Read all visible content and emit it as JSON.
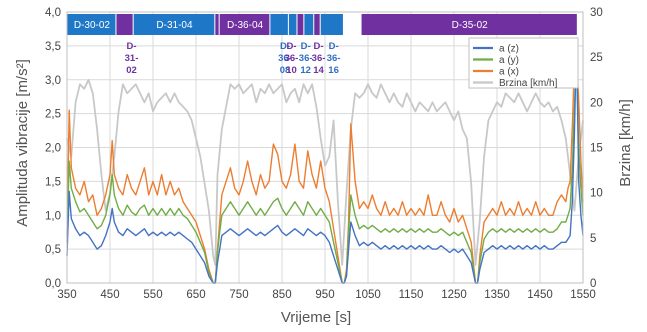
{
  "chart_data": {
    "type": "line",
    "xlabel": "Vrijeme [s]",
    "ylabel_left": "Amplituda vibracije [m/s²]",
    "ylabel_right": "Brzina [km/h]",
    "xlim": [
      350,
      1550
    ],
    "ylim_left": [
      0,
      4
    ],
    "ylim_right": [
      0,
      30
    ],
    "x_ticks": [
      "350",
      "450",
      "550",
      "650",
      "750",
      "850",
      "950",
      "1050",
      "1150",
      "1250",
      "1350",
      "1450",
      "1550"
    ],
    "y_ticks_left": [
      "0,0",
      "0,5",
      "1,0",
      "1,5",
      "2,0",
      "2,5",
      "3,0",
      "3,5",
      "4,0"
    ],
    "y_ticks_right": [
      "0",
      "5",
      "10",
      "15",
      "20",
      "25",
      "30"
    ],
    "grid": true,
    "legend_position": "top-right",
    "colors": {
      "az": "#4472c4",
      "ay": "#70ad47",
      "ax": "#ed7d31",
      "speed": "#c8c8c8",
      "segment_blue": "#1f77c8",
      "segment_purple": "#7030a0",
      "label_blue": "#2e6fc4",
      "label_purple": "#7030a0"
    },
    "series": [
      {
        "key": "az",
        "name": "a (z)",
        "axis": "left",
        "x": [
          350,
          355,
          360,
          370,
          380,
          390,
          400,
          410,
          420,
          430,
          440,
          450,
          455,
          460,
          470,
          480,
          490,
          500,
          510,
          520,
          530,
          540,
          550,
          560,
          570,
          580,
          590,
          600,
          610,
          620,
          630,
          640,
          650,
          660,
          670,
          680,
          690,
          695,
          700,
          705,
          710,
          720,
          730,
          740,
          750,
          760,
          770,
          780,
          790,
          800,
          810,
          820,
          830,
          840,
          850,
          860,
          870,
          880,
          890,
          900,
          910,
          920,
          930,
          940,
          950,
          960,
          970,
          980,
          990,
          995,
          1000,
          1005,
          1010,
          1020,
          1030,
          1040,
          1050,
          1060,
          1070,
          1080,
          1090,
          1100,
          1110,
          1120,
          1130,
          1140,
          1150,
          1160,
          1170,
          1180,
          1190,
          1200,
          1210,
          1220,
          1230,
          1240,
          1250,
          1260,
          1270,
          1280,
          1290,
          1300,
          1305,
          1310,
          1320,
          1330,
          1340,
          1350,
          1360,
          1370,
          1380,
          1390,
          1400,
          1410,
          1420,
          1430,
          1440,
          1450,
          1460,
          1470,
          1480,
          1490,
          1500,
          1510,
          1515,
          1520,
          1525,
          1530,
          1535,
          1540,
          1545,
          1550
        ],
        "y": [
          0.4,
          1.35,
          0.95,
          0.8,
          0.7,
          0.75,
          0.7,
          0.6,
          0.5,
          0.55,
          0.7,
          0.9,
          1.1,
          0.9,
          0.75,
          0.7,
          0.8,
          0.75,
          0.7,
          0.75,
          0.8,
          0.7,
          0.75,
          0.7,
          0.75,
          0.7,
          0.75,
          0.7,
          0.75,
          0.7,
          0.65,
          0.6,
          0.5,
          0.4,
          0.3,
          0.1,
          0.0,
          0.0,
          0.3,
          0.5,
          0.7,
          0.75,
          0.8,
          0.75,
          0.7,
          0.75,
          0.8,
          0.75,
          0.7,
          0.75,
          0.7,
          0.75,
          0.8,
          0.85,
          0.75,
          0.7,
          0.75,
          0.8,
          0.75,
          0.7,
          0.8,
          0.75,
          0.7,
          0.75,
          0.7,
          0.6,
          0.4,
          0.2,
          0.0,
          0.0,
          0.1,
          0.5,
          0.9,
          0.7,
          0.55,
          0.6,
          0.55,
          0.6,
          0.55,
          0.5,
          0.55,
          0.5,
          0.55,
          0.5,
          0.55,
          0.5,
          0.55,
          0.5,
          0.55,
          0.5,
          0.55,
          0.5,
          0.5,
          0.55,
          0.5,
          0.45,
          0.5,
          0.45,
          0.5,
          0.4,
          0.3,
          0.0,
          0.0,
          0.2,
          0.45,
          0.5,
          0.55,
          0.5,
          0.55,
          0.5,
          0.55,
          0.5,
          0.55,
          0.5,
          0.55,
          0.5,
          0.55,
          0.5,
          0.55,
          0.5,
          0.5,
          0.55,
          0.6,
          0.6,
          0.65,
          0.7,
          1.2,
          2.2,
          3.6,
          1.5,
          1.0,
          0.7
        ]
      },
      {
        "key": "ay",
        "name": "a (y)",
        "axis": "left",
        "x": [
          350,
          355,
          360,
          370,
          380,
          390,
          400,
          410,
          420,
          430,
          440,
          450,
          455,
          460,
          470,
          480,
          490,
          500,
          510,
          520,
          530,
          540,
          550,
          560,
          570,
          580,
          590,
          600,
          610,
          620,
          630,
          640,
          650,
          660,
          670,
          680,
          690,
          695,
          700,
          705,
          710,
          720,
          730,
          740,
          750,
          760,
          770,
          780,
          790,
          800,
          810,
          820,
          830,
          840,
          850,
          860,
          870,
          880,
          890,
          900,
          910,
          920,
          930,
          940,
          950,
          960,
          970,
          980,
          990,
          995,
          1000,
          1005,
          1010,
          1020,
          1030,
          1040,
          1050,
          1060,
          1070,
          1080,
          1090,
          1100,
          1110,
          1120,
          1130,
          1140,
          1150,
          1160,
          1170,
          1180,
          1190,
          1200,
          1210,
          1220,
          1230,
          1240,
          1250,
          1260,
          1270,
          1280,
          1290,
          1300,
          1305,
          1310,
          1320,
          1330,
          1340,
          1350,
          1360,
          1370,
          1380,
          1390,
          1400,
          1410,
          1420,
          1430,
          1440,
          1450,
          1460,
          1470,
          1480,
          1490,
          1500,
          1510,
          1515,
          1520,
          1525,
          1530,
          1535,
          1540,
          1545,
          1550
        ],
        "y": [
          0.6,
          1.8,
          1.4,
          1.2,
          1.05,
          1.1,
          1.0,
          0.9,
          0.8,
          0.85,
          1.0,
          1.3,
          1.6,
          1.3,
          1.1,
          1.0,
          1.15,
          1.05,
          1.0,
          1.1,
          1.15,
          1.0,
          1.1,
          1.0,
          1.1,
          1.0,
          1.1,
          1.0,
          1.1,
          1.0,
          0.95,
          0.85,
          0.75,
          0.6,
          0.45,
          0.15,
          0.0,
          0.0,
          0.45,
          0.75,
          1.0,
          1.1,
          1.2,
          1.1,
          1.0,
          1.1,
          1.2,
          1.1,
          1.0,
          1.1,
          1.0,
          1.1,
          1.2,
          1.25,
          1.1,
          1.0,
          1.1,
          1.2,
          1.1,
          1.0,
          1.2,
          1.1,
          1.0,
          1.1,
          1.0,
          0.9,
          0.6,
          0.3,
          0.0,
          0.0,
          0.15,
          0.75,
          1.3,
          1.0,
          0.8,
          0.85,
          0.8,
          0.85,
          0.8,
          0.75,
          0.8,
          0.75,
          0.8,
          0.75,
          0.8,
          0.75,
          0.8,
          0.75,
          0.8,
          0.75,
          0.8,
          0.75,
          0.75,
          0.8,
          0.75,
          0.7,
          0.75,
          0.7,
          0.75,
          0.6,
          0.45,
          0.0,
          0.0,
          0.3,
          0.65,
          0.75,
          0.8,
          0.75,
          0.8,
          0.75,
          0.8,
          0.75,
          0.8,
          0.75,
          0.8,
          0.75,
          0.8,
          0.75,
          0.8,
          0.75,
          0.75,
          0.8,
          0.9,
          0.9,
          1.0,
          1.1,
          1.7,
          2.6,
          3.3,
          2.0,
          1.4,
          1.0
        ]
      },
      {
        "key": "ax",
        "name": "a (x)",
        "axis": "left",
        "x": [
          350,
          355,
          360,
          370,
          380,
          390,
          400,
          410,
          420,
          430,
          440,
          450,
          455,
          460,
          470,
          480,
          490,
          500,
          510,
          520,
          530,
          540,
          550,
          560,
          570,
          580,
          590,
          600,
          610,
          620,
          630,
          640,
          650,
          660,
          670,
          680,
          690,
          695,
          700,
          705,
          710,
          720,
          730,
          740,
          750,
          760,
          770,
          780,
          790,
          800,
          810,
          820,
          830,
          840,
          850,
          860,
          870,
          880,
          890,
          900,
          910,
          920,
          930,
          940,
          950,
          960,
          970,
          980,
          990,
          995,
          1000,
          1005,
          1010,
          1020,
          1030,
          1040,
          1050,
          1060,
          1070,
          1080,
          1090,
          1100,
          1110,
          1120,
          1130,
          1140,
          1150,
          1160,
          1170,
          1180,
          1190,
          1200,
          1210,
          1220,
          1230,
          1240,
          1250,
          1260,
          1270,
          1280,
          1290,
          1300,
          1305,
          1310,
          1320,
          1330,
          1340,
          1350,
          1360,
          1370,
          1380,
          1390,
          1400,
          1410,
          1420,
          1430,
          1440,
          1450,
          1460,
          1470,
          1480,
          1490,
          1500,
          1510,
          1515,
          1520,
          1525,
          1530,
          1535,
          1540,
          1545,
          1550
        ],
        "y": [
          0.7,
          2.55,
          1.7,
          1.4,
          1.3,
          1.5,
          1.2,
          1.3,
          1.0,
          1.1,
          1.3,
          1.6,
          2.1,
          1.6,
          1.4,
          1.3,
          1.6,
          1.4,
          1.3,
          1.5,
          1.7,
          1.3,
          1.5,
          1.3,
          1.6,
          1.3,
          1.5,
          1.3,
          1.4,
          1.2,
          1.1,
          1.0,
          0.9,
          0.7,
          0.5,
          0.2,
          0.0,
          0.0,
          0.5,
          0.9,
          1.3,
          1.5,
          1.7,
          1.4,
          1.3,
          1.5,
          1.8,
          1.5,
          1.3,
          1.6,
          1.4,
          1.5,
          2.05,
          1.9,
          1.5,
          1.4,
          1.6,
          2.05,
          1.5,
          1.4,
          1.95,
          1.6,
          1.4,
          1.8,
          1.4,
          1.2,
          0.8,
          0.4,
          0.0,
          0.0,
          0.2,
          0.9,
          2.35,
          1.5,
          1.1,
          1.2,
          1.1,
          1.3,
          1.1,
          1.0,
          1.2,
          1.0,
          1.1,
          1.0,
          1.2,
          1.0,
          1.1,
          1.0,
          1.1,
          1.0,
          1.3,
          1.0,
          1.0,
          1.2,
          1.0,
          0.9,
          1.1,
          0.9,
          1.0,
          0.8,
          0.6,
          0.0,
          0.0,
          0.4,
          0.9,
          1.0,
          1.1,
          1.0,
          1.2,
          1.0,
          1.1,
          1.0,
          1.2,
          1.0,
          1.1,
          1.0,
          1.2,
          1.0,
          1.1,
          1.0,
          1.0,
          1.2,
          1.3,
          1.2,
          1.4,
          1.5,
          2.3,
          3.2,
          3.3,
          2.7,
          1.8,
          1.2
        ]
      },
      {
        "key": "speed",
        "name": "Brzina [km/h]",
        "axis": "right",
        "x": [
          350,
          360,
          370,
          380,
          390,
          400,
          410,
          420,
          430,
          440,
          450,
          460,
          470,
          480,
          490,
          500,
          510,
          520,
          530,
          540,
          550,
          560,
          570,
          580,
          590,
          600,
          610,
          620,
          630,
          640,
          650,
          660,
          670,
          680,
          690,
          695,
          700,
          710,
          720,
          730,
          740,
          750,
          760,
          770,
          780,
          790,
          800,
          810,
          820,
          830,
          840,
          850,
          860,
          870,
          880,
          890,
          900,
          910,
          920,
          930,
          940,
          950,
          960,
          970,
          980,
          990,
          1000,
          1010,
          1020,
          1030,
          1040,
          1050,
          1060,
          1070,
          1080,
          1090,
          1100,
          1110,
          1120,
          1130,
          1140,
          1150,
          1160,
          1170,
          1180,
          1190,
          1200,
          1210,
          1220,
          1230,
          1240,
          1250,
          1260,
          1270,
          1280,
          1290,
          1300,
          1310,
          1320,
          1330,
          1340,
          1350,
          1360,
          1370,
          1380,
          1390,
          1400,
          1410,
          1420,
          1430,
          1440,
          1450,
          1460,
          1470,
          1480,
          1490,
          1500,
          1510,
          1520,
          1530,
          1540,
          1550
        ],
        "y": [
          16,
          14,
          20,
          22,
          21.5,
          22.5,
          21,
          17,
          12,
          8,
          10,
          14,
          19,
          22,
          21,
          21.5,
          22,
          21,
          20,
          21,
          19,
          20,
          20.5,
          21,
          20,
          21,
          20,
          19.5,
          19,
          18,
          16,
          14,
          11,
          8,
          3,
          2,
          12,
          17,
          19.5,
          22,
          21.5,
          22,
          21,
          21.5,
          22,
          20,
          21.5,
          21,
          22,
          21,
          21.5,
          22,
          20,
          21,
          21.5,
          20,
          22,
          21,
          22,
          19.5,
          16,
          13,
          14,
          18,
          9,
          2,
          10,
          17,
          21,
          20.5,
          21,
          22,
          21,
          20.5,
          22,
          21,
          20,
          21,
          20,
          19.5,
          21,
          20,
          19,
          20,
          19.5,
          19,
          20,
          19,
          19.5,
          20,
          19,
          18,
          19,
          17,
          16,
          11,
          2,
          7,
          14,
          18,
          19,
          20,
          19.5,
          21,
          20.5,
          20,
          21,
          20,
          19,
          20,
          21,
          20,
          19.5,
          20,
          19,
          19.5,
          18,
          16,
          12,
          8,
          14,
          18
        ]
      }
    ],
    "segments_top": [
      {
        "label": "D-30-02",
        "x_start": 351,
        "x_end": 465,
        "color": "blue"
      },
      {
        "label": "",
        "x_start": 465,
        "x_end": 505,
        "color": "purple"
      },
      {
        "label": "D-31-04",
        "x_start": 505,
        "x_end": 695,
        "color": "blue"
      },
      {
        "label": "",
        "x_start": 695,
        "x_end": 705,
        "color": "purple"
      },
      {
        "label": "D-36-04",
        "x_start": 705,
        "x_end": 823,
        "color": "purple"
      },
      {
        "label": "",
        "x_start": 823,
        "x_end": 866,
        "color": "blue"
      },
      {
        "label": "",
        "x_start": 866,
        "x_end": 886,
        "color": "blue"
      },
      {
        "label": "",
        "x_start": 886,
        "x_end": 902,
        "color": "purple"
      },
      {
        "label": "",
        "x_start": 902,
        "x_end": 925,
        "color": "blue"
      },
      {
        "label": "",
        "x_start": 925,
        "x_end": 940,
        "color": "purple"
      },
      {
        "label": "",
        "x_start": 940,
        "x_end": 994,
        "color": "blue"
      },
      {
        "label": "D-35-02",
        "x_start": 1035,
        "x_end": 1538,
        "color": "purple"
      }
    ],
    "segment_annotations": [
      {
        "label": "D-\n31-\n02",
        "x": 500,
        "color": "purple"
      },
      {
        "label": "D-\n36-\n08",
        "x": 857,
        "color": "blue"
      },
      {
        "label": "D-\n36-\n10",
        "x": 872,
        "color": "purple"
      },
      {
        "label": "D-\n36-\n12",
        "x": 905,
        "color": "blue"
      },
      {
        "label": "D-\n36-\n14",
        "x": 935,
        "color": "purple"
      },
      {
        "label": "D-\n36-\n16",
        "x": 970,
        "color": "blue"
      }
    ]
  }
}
